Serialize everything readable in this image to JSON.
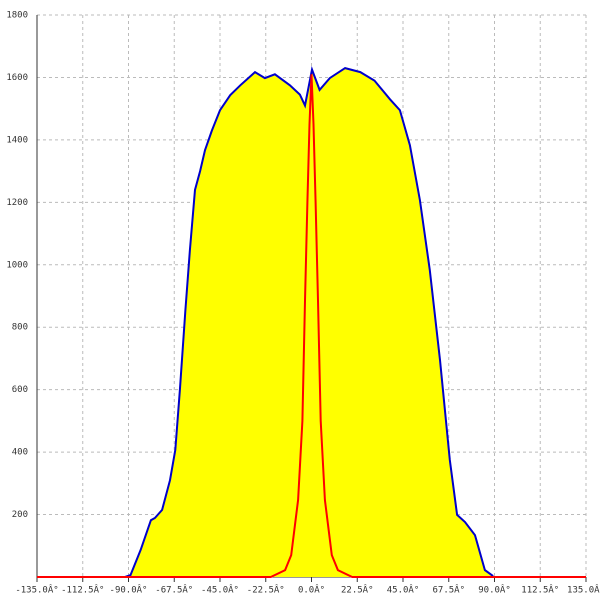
{
  "chart_data": {
    "type": "area",
    "xlim": [
      -135,
      135
    ],
    "xticks": [
      {
        "value": -135,
        "label": "-135.0Â°"
      },
      {
        "value": -112.5,
        "label": "-112.5Â°"
      },
      {
        "value": -90,
        "label": "-90.0Â°"
      },
      {
        "value": -67.5,
        "label": "-67.5Â°"
      },
      {
        "value": -45,
        "label": "-45.0Â°"
      },
      {
        "value": -22.5,
        "label": "-22.5Â°"
      },
      {
        "value": 0,
        "label": "0.0Â°"
      },
      {
        "value": 22.5,
        "label": "22.5Â°"
      },
      {
        "value": 45,
        "label": "45.0Â°"
      },
      {
        "value": 67.5,
        "label": "67.5Â°"
      },
      {
        "value": 90,
        "label": "90.0Â°"
      },
      {
        "value": 112.5,
        "label": "112.5Â°"
      },
      {
        "value": 135,
        "label": "135.0Â°"
      }
    ],
    "ylim": [
      0,
      1800
    ],
    "yticks": [
      200,
      400,
      600,
      800,
      1000,
      1200,
      1400,
      1600,
      1800
    ],
    "grid": true,
    "series": [
      {
        "color": "#0000cc",
        "fill": "#ffff00",
        "x": [
          -91.7,
          -89,
          -84,
          -79,
          -77,
          -73.5,
          -69.6,
          -67,
          -64.7,
          -62,
          -59.8,
          -57.3,
          -54.8,
          -52.4,
          -49,
          -45,
          -40,
          -35,
          -27.8,
          -22.9,
          -18,
          -10.6,
          -5.7,
          -3.2,
          0.25,
          4,
          9,
          16.5,
          24,
          31,
          38.6,
          43.5,
          48.4,
          53.3,
          58.2,
          63.2,
          68,
          71.6,
          75.5,
          80.4,
          85.3,
          89.3
        ],
        "values": [
          0,
          6,
          87,
          182,
          189,
          215,
          310,
          407,
          600,
          855,
          1047,
          1240,
          1300,
          1367,
          1430,
          1495,
          1543,
          1575,
          1617,
          1598,
          1610,
          1575,
          1545,
          1510,
          1625,
          1560,
          1598,
          1630,
          1617,
          1590,
          1530,
          1495,
          1383,
          1207,
          983,
          695,
          375,
          199,
          176,
          134,
          22,
          3
        ]
      },
      {
        "color": "#ff0000",
        "x": [
          -135,
          -20,
          -13,
          -10,
          -6.6,
          -4.5,
          -3.2,
          -2,
          -1,
          0,
          1,
          2,
          3.2,
          4.5,
          6.6,
          10,
          13,
          20,
          135
        ],
        "values": [
          0,
          0,
          22,
          70,
          247,
          500,
          885,
          1200,
          1450,
          1610,
          1450,
          1200,
          885,
          500,
          247,
          70,
          22,
          0,
          0
        ]
      }
    ]
  }
}
